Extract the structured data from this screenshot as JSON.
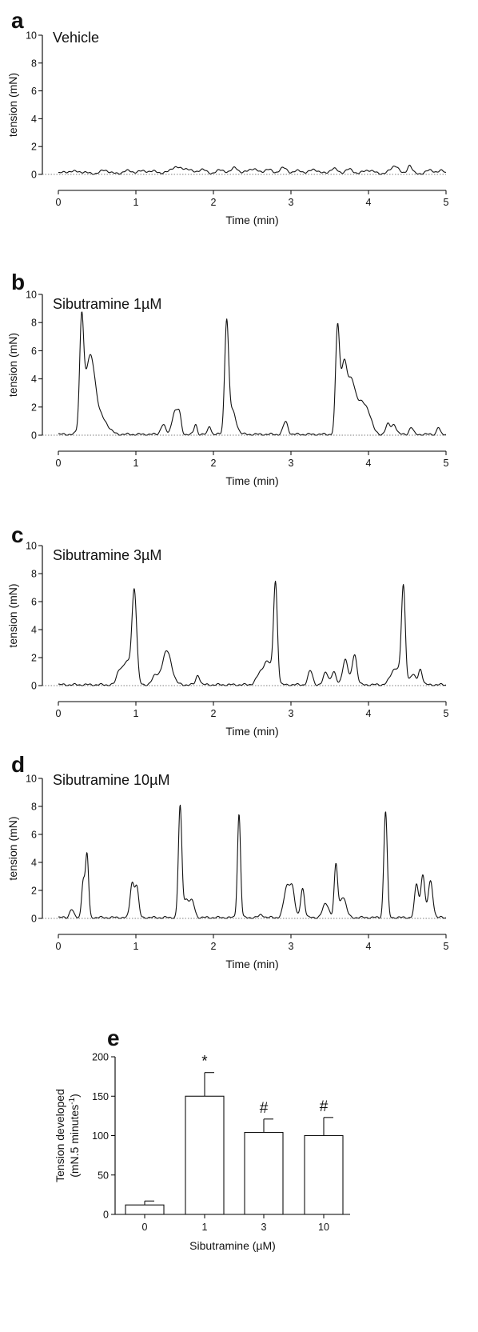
{
  "chart_data": [
    {
      "panel": "a",
      "type": "line",
      "condition": "Vehicle",
      "xlabel": "Time (min)",
      "ylabel": "tension (mN)",
      "xlim": [
        0,
        5
      ],
      "ylim": [
        0,
        10
      ],
      "xticks": [
        0,
        1,
        2,
        3,
        4,
        5
      ],
      "yticks": [
        0,
        2,
        4,
        6,
        8,
        10
      ],
      "baseline": 0,
      "peaks": [
        [
          0.15,
          0.15,
          0.08
        ],
        [
          0.3,
          0.1,
          0.06
        ],
        [
          0.6,
          0.25,
          0.05
        ],
        [
          0.9,
          0.2,
          0.06
        ],
        [
          1.1,
          0.2,
          0.06
        ],
        [
          1.25,
          0.15,
          0.05
        ],
        [
          1.5,
          0.45,
          0.06
        ],
        [
          1.65,
          0.35,
          0.06
        ],
        [
          1.85,
          0.3,
          0.05
        ],
        [
          2.1,
          0.25,
          0.06
        ],
        [
          2.28,
          0.45,
          0.04
        ],
        [
          2.5,
          0.35,
          0.06
        ],
        [
          2.7,
          0.3,
          0.05
        ],
        [
          2.9,
          0.4,
          0.05
        ],
        [
          3.1,
          0.2,
          0.06
        ],
        [
          3.3,
          0.3,
          0.05
        ],
        [
          3.55,
          0.35,
          0.05
        ],
        [
          3.75,
          0.3,
          0.05
        ],
        [
          4.0,
          0.25,
          0.06
        ],
        [
          4.3,
          0.2,
          0.05
        ],
        [
          4.35,
          0.45,
          0.04
        ],
        [
          4.53,
          0.6,
          0.03
        ],
        [
          4.8,
          0.25,
          0.05
        ],
        [
          4.95,
          0.2,
          0.04
        ]
      ]
    },
    {
      "panel": "b",
      "type": "line",
      "condition": "Sibutramine 1µM",
      "xlabel": "Time (min)",
      "ylabel": "tension (mN)",
      "xlim": [
        0,
        5
      ],
      "ylim": [
        0,
        10
      ],
      "xticks": [
        0,
        1,
        2,
        3,
        4,
        5
      ],
      "yticks": [
        0,
        2,
        4,
        6,
        8,
        10
      ],
      "baseline": 0,
      "peaks": [
        [
          0.3,
          7.2,
          0.025
        ],
        [
          0.38,
          3.6,
          0.06
        ],
        [
          0.44,
          2.6,
          0.05
        ],
        [
          0.55,
          1.2,
          0.08
        ],
        [
          1.35,
          0.7,
          0.03
        ],
        [
          1.5,
          1.6,
          0.035
        ],
        [
          1.56,
          1.3,
          0.025
        ],
        [
          1.77,
          0.7,
          0.02
        ],
        [
          1.95,
          0.6,
          0.02
        ],
        [
          2.17,
          7.6,
          0.025
        ],
        [
          2.24,
          1.7,
          0.05
        ],
        [
          2.93,
          0.9,
          0.03
        ],
        [
          3.6,
          7.2,
          0.025
        ],
        [
          3.68,
          4.8,
          0.04
        ],
        [
          3.78,
          3.5,
          0.05
        ],
        [
          3.9,
          2.0,
          0.06
        ],
        [
          4.0,
          1.2,
          0.05
        ],
        [
          4.25,
          0.7,
          0.03
        ],
        [
          4.33,
          0.7,
          0.03
        ],
        [
          4.55,
          0.5,
          0.025
        ],
        [
          4.9,
          0.5,
          0.02
        ]
      ]
    },
    {
      "panel": "c",
      "type": "line",
      "condition": "Sibutramine 3µM",
      "xlabel": "Time (min)",
      "ylabel": "tension (mN)",
      "xlim": [
        0,
        5
      ],
      "ylim": [
        0,
        10
      ],
      "xticks": [
        0,
        1,
        2,
        3,
        4,
        5
      ],
      "yticks": [
        0,
        2,
        4,
        6,
        8,
        10
      ],
      "baseline": 0,
      "peaks": [
        [
          0.78,
          0.7,
          0.03
        ],
        [
          0.88,
          1.6,
          0.06
        ],
        [
          0.98,
          6.5,
          0.03
        ],
        [
          1.25,
          0.6,
          0.04
        ],
        [
          1.4,
          2.4,
          0.06
        ],
        [
          1.8,
          0.7,
          0.025
        ],
        [
          2.6,
          0.7,
          0.05
        ],
        [
          2.7,
          1.6,
          0.05
        ],
        [
          2.8,
          7.2,
          0.025
        ],
        [
          3.25,
          1.0,
          0.03
        ],
        [
          3.45,
          0.9,
          0.03
        ],
        [
          3.55,
          0.9,
          0.03
        ],
        [
          3.7,
          1.8,
          0.035
        ],
        [
          3.82,
          2.2,
          0.03
        ],
        [
          4.35,
          1.2,
          0.06
        ],
        [
          4.45,
          6.8,
          0.025
        ],
        [
          4.57,
          0.7,
          0.04
        ],
        [
          4.67,
          1.1,
          0.025
        ]
      ]
    },
    {
      "panel": "d",
      "type": "line",
      "condition": "Sibutramine 10µM",
      "xlabel": "Time (min)",
      "ylabel": "tension (mN)",
      "xlim": [
        0,
        5
      ],
      "ylim": [
        0,
        10
      ],
      "xticks": [
        0,
        1,
        2,
        3,
        4,
        5
      ],
      "yticks": [
        0,
        2,
        4,
        6,
        8,
        10
      ],
      "baseline": 0,
      "peaks": [
        [
          0.17,
          0.6,
          0.025
        ],
        [
          0.32,
          2.6,
          0.02
        ],
        [
          0.37,
          4.5,
          0.02
        ],
        [
          0.95,
          2.4,
          0.025
        ],
        [
          1.01,
          2.2,
          0.025
        ],
        [
          1.57,
          7.8,
          0.022
        ],
        [
          1.65,
          1.3,
          0.04
        ],
        [
          1.73,
          1.0,
          0.03
        ],
        [
          2.33,
          7.4,
          0.02
        ],
        [
          2.62,
          0.2,
          0.03
        ],
        [
          2.95,
          2.2,
          0.04
        ],
        [
          3.02,
          1.8,
          0.03
        ],
        [
          3.15,
          2.1,
          0.025
        ],
        [
          3.45,
          1.0,
          0.04
        ],
        [
          3.58,
          3.7,
          0.022
        ],
        [
          3.67,
          1.5,
          0.04
        ],
        [
          4.22,
          7.6,
          0.022
        ],
        [
          4.62,
          2.4,
          0.025
        ],
        [
          4.7,
          3.1,
          0.025
        ],
        [
          4.8,
          2.6,
          0.03
        ]
      ]
    },
    {
      "panel": "e",
      "type": "bar",
      "categories": [
        "0",
        "1",
        "3",
        "10"
      ],
      "values": [
        12,
        150,
        104,
        100
      ],
      "errors": [
        5,
        30,
        17,
        23
      ],
      "annotations": [
        "",
        "*",
        "#",
        "#"
      ],
      "xlabel": "Sibutramine (µM)",
      "ylabel_line1": "Tension developed",
      "ylabel_line2_main": "(mN.5 minutes",
      "ylabel_line2_sup": "-1",
      "ylabel_line2_end": ")",
      "ylim": [
        0,
        200
      ],
      "yticks": [
        0,
        50,
        100,
        150,
        200
      ]
    }
  ]
}
